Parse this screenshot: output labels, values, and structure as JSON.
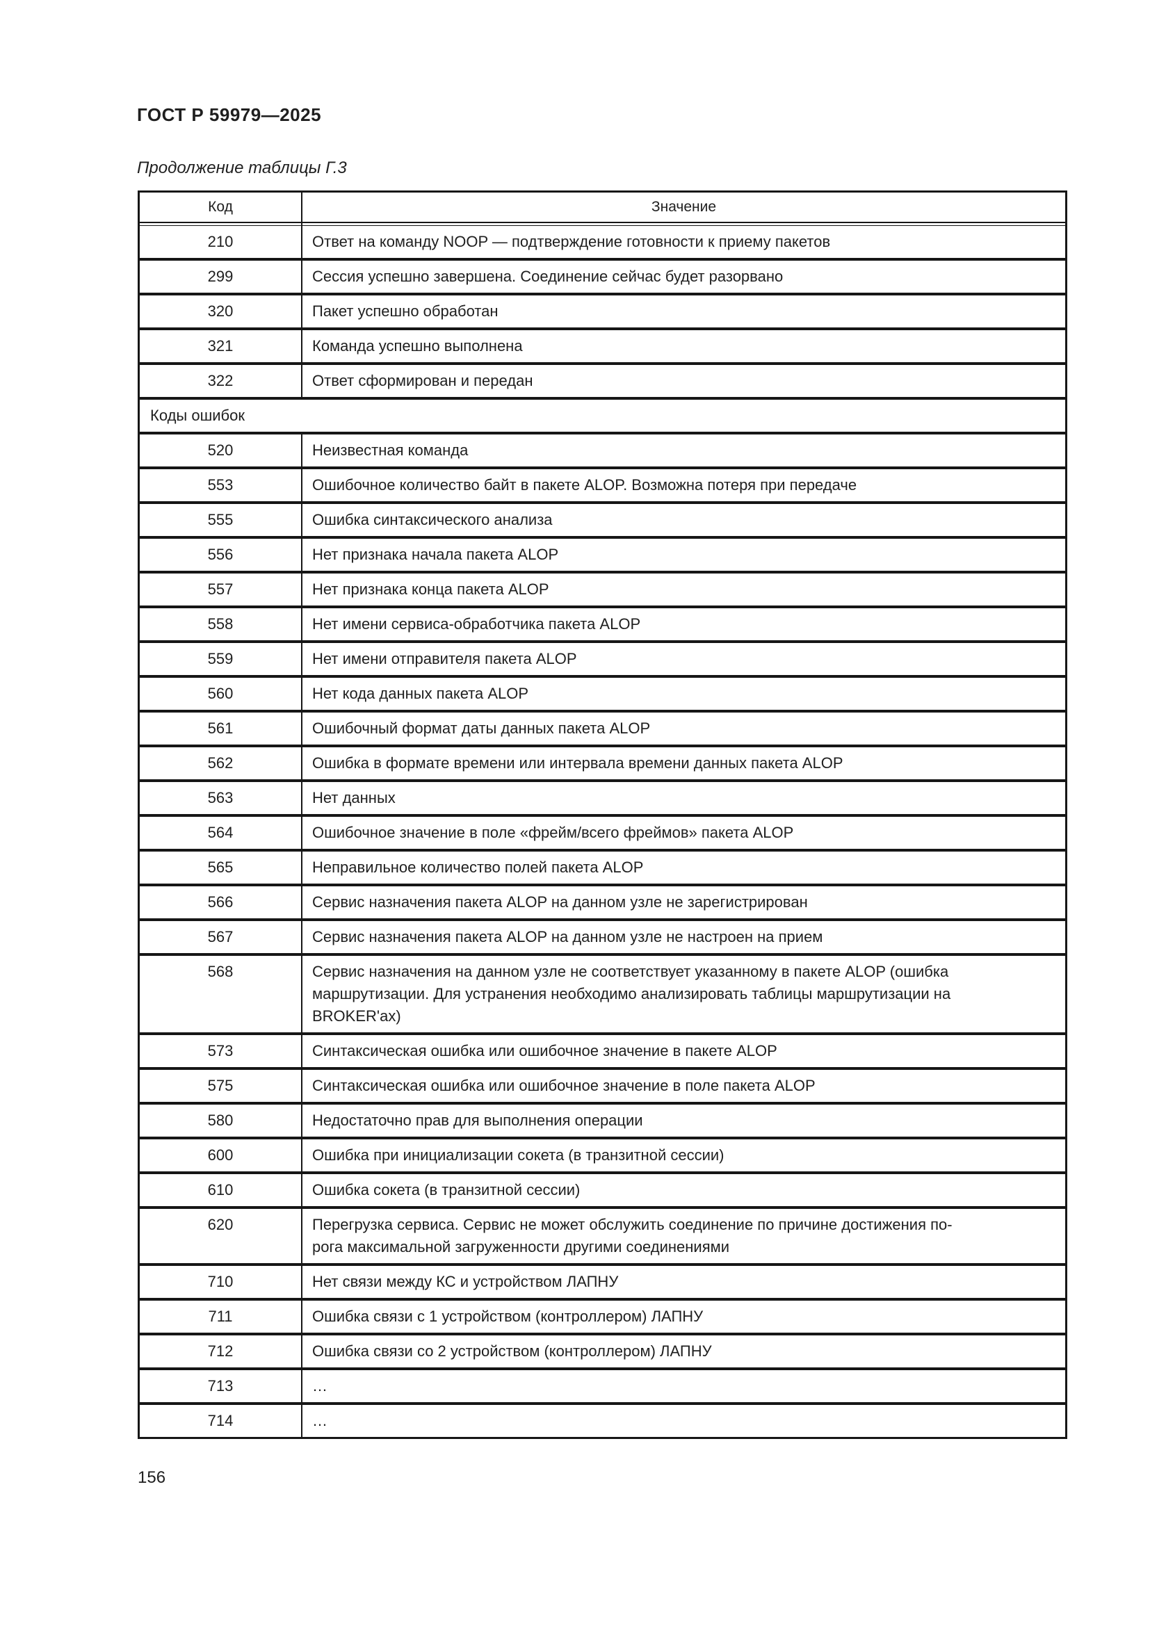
{
  "document": {
    "standard_code": "ГОСТ Р 59979—2025",
    "table_caption": "Продолжение таблицы Г.3",
    "page_number": "156"
  },
  "table": {
    "col_code_header": "Код",
    "col_value_header": "Значение",
    "rows": [
      {
        "code": "210",
        "value": "Ответ на команду NOOP — подтверждение готовности к приему пакетов"
      },
      {
        "code": "299",
        "value": "Сессия успешно завершена. Соединение сейчас будет разорвано"
      },
      {
        "code": "320",
        "value": "Пакет успешно обработан"
      },
      {
        "code": "321",
        "value": "Команда успешно выполнена"
      },
      {
        "code": "322",
        "value": "Ответ сформирован и передан"
      },
      {
        "section": "Коды ошибок"
      },
      {
        "code": "520",
        "value": "Неизвестная команда"
      },
      {
        "code": "553",
        "value": "Ошибочное количество байт в пакете ALOP. Возможна потеря при передаче"
      },
      {
        "code": "555",
        "value": "Ошибка синтаксического анализа"
      },
      {
        "code": "556",
        "value": "Нет признака начала пакета ALOP"
      },
      {
        "code": "557",
        "value": "Нет признака конца пакета ALOP"
      },
      {
        "code": "558",
        "value": "Нет имени сервиса-обработчика пакета ALOP"
      },
      {
        "code": "559",
        "value": "Нет имени отправителя пакета ALOP"
      },
      {
        "code": "560",
        "value": "Нет кода данных пакета ALOP"
      },
      {
        "code": "561",
        "value": "Ошибочный формат даты данных пакета ALOP"
      },
      {
        "code": "562",
        "value": "Ошибка в формате времени или интервала времени данных пакета ALOP"
      },
      {
        "code": "563",
        "value": "Нет данных"
      },
      {
        "code": "564",
        "value": "Ошибочное значение в поле «фрейм/всего фреймов» пакета ALOP"
      },
      {
        "code": "565",
        "value": "Неправильное количество полей пакета ALOP"
      },
      {
        "code": "566",
        "value": "Сервис назначения пакета ALOP на данном узле не зарегистрирован"
      },
      {
        "code": "567",
        "value": "Сервис назначения пакета ALOP на данном узле не настроен на прием"
      },
      {
        "code": "568",
        "value": "Сервис назначения на данном узле не соответствует указанному в пакете ALOP (ошибка\nмаршрутизации. Для устранения необходимо анализировать таблицы маршрутизации на\nBROKER'ах)"
      },
      {
        "code": "573",
        "value": "Синтаксическая ошибка или ошибочное значение в пакете ALOP"
      },
      {
        "code": "575",
        "value": "Синтаксическая ошибка или ошибочное значение в поле пакета ALOP"
      },
      {
        "code": "580",
        "value": "Недостаточно прав для выполнения операции"
      },
      {
        "code": "600",
        "value": "Ошибка при инициализации сокета (в транзитной сессии)"
      },
      {
        "code": "610",
        "value": "Ошибка сокета (в транзитной сессии)"
      },
      {
        "code": "620",
        "value": "Перегрузка сервиса. Сервис не может обслужить соединение по причине достижения по-\nрога максимальной загруженности другими соединениями"
      },
      {
        "code": "710",
        "value": "Нет связи между КС и устройством ЛАПНУ"
      },
      {
        "code": "711",
        "value": "Ошибка связи с 1 устройством (контроллером) ЛАПНУ"
      },
      {
        "code": "712",
        "value": "Ошибка связи со 2 устройством (контроллером) ЛАПНУ"
      },
      {
        "code": "713",
        "value": "…"
      },
      {
        "code": "714",
        "value": "…"
      }
    ]
  },
  "colors": {
    "background": "#ffffff",
    "text": "#1f1f1f",
    "border": "#161616"
  }
}
